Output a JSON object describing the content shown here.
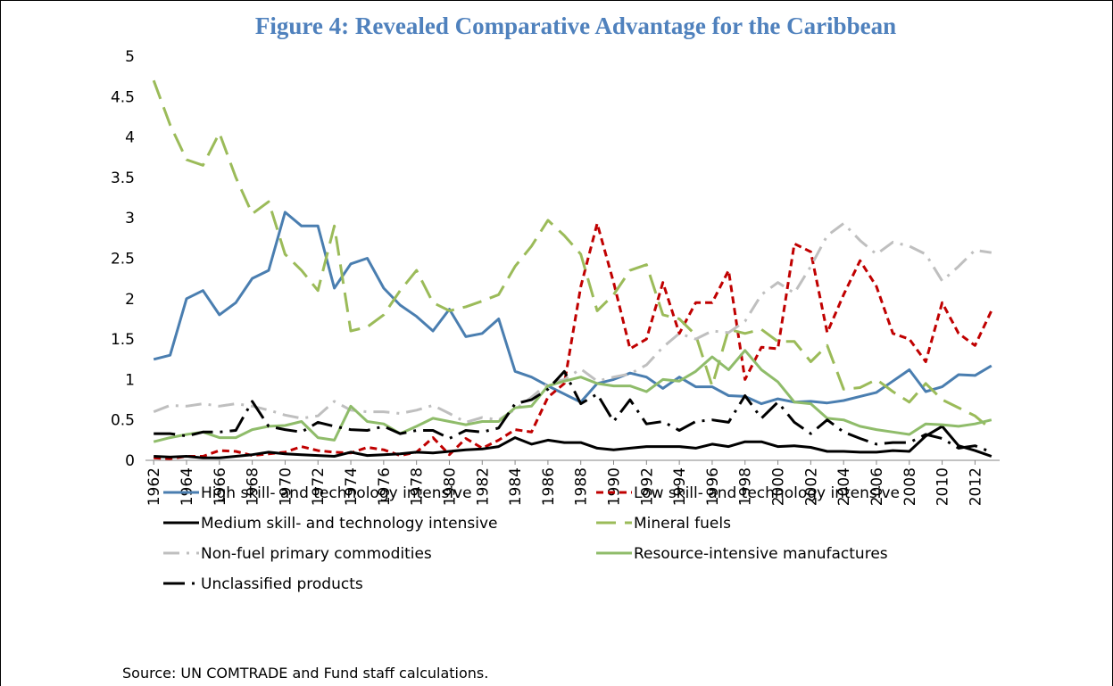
{
  "chart_data": {
    "type": "line",
    "title": "Figure 4: Revealed Comparative Advantage for the Caribbean",
    "source": "Source: UN COMTRADE and Fund staff calculations.",
    "x": [
      1962,
      1963,
      1964,
      1965,
      1966,
      1967,
      1968,
      1969,
      1970,
      1971,
      1972,
      1973,
      1974,
      1975,
      1976,
      1977,
      1978,
      1979,
      1980,
      1981,
      1982,
      1983,
      1984,
      1985,
      1986,
      1987,
      1988,
      1989,
      1990,
      1991,
      1992,
      1993,
      1994,
      1995,
      1996,
      1997,
      1998,
      1999,
      2000,
      2001,
      2002,
      2003,
      2004,
      2005,
      2006,
      2007,
      2008,
      2009,
      2010,
      2011,
      2012,
      2013
    ],
    "xlim": [
      1961.5,
      2013.5
    ],
    "xticks": [
      1962,
      1964,
      1966,
      1968,
      1970,
      1972,
      1974,
      1976,
      1978,
      1980,
      1982,
      1984,
      1986,
      1988,
      1990,
      1992,
      1994,
      1996,
      1998,
      2000,
      2002,
      2004,
      2006,
      2008,
      2010,
      2012
    ],
    "ylim": [
      0,
      5
    ],
    "yticks": [
      0,
      0.5,
      1,
      1.5,
      2,
      2.5,
      3,
      3.5,
      4,
      4.5,
      5
    ],
    "grid": false,
    "series": [
      {
        "name": "High skill- and technology intensive",
        "color": "#4a7eb0",
        "line_style": "solid",
        "values": [
          1.25,
          1.3,
          2.0,
          2.1,
          1.8,
          1.95,
          2.25,
          2.35,
          3.07,
          2.9,
          2.9,
          2.13,
          2.43,
          2.5,
          2.13,
          1.92,
          1.78,
          1.6,
          1.87,
          1.53,
          1.57,
          1.75,
          1.1,
          1.03,
          0.92,
          0.82,
          0.72,
          0.95,
          1.0,
          1.08,
          1.03,
          0.89,
          1.03,
          0.91,
          0.91,
          0.8,
          0.79,
          0.7,
          0.76,
          0.72,
          0.73,
          0.71,
          0.74,
          0.79,
          0.84,
          0.98,
          1.12,
          0.85,
          0.91,
          1.06,
          1.05,
          1.17
        ]
      },
      {
        "name": "Low skill- and technology intensive",
        "color": "#c00000",
        "line_style": "dash",
        "values": [
          0.03,
          0.02,
          0.05,
          0.05,
          0.12,
          0.11,
          0.06,
          0.08,
          0.1,
          0.17,
          0.12,
          0.1,
          0.09,
          0.16,
          0.13,
          0.06,
          0.1,
          0.28,
          0.07,
          0.27,
          0.15,
          0.25,
          0.38,
          0.35,
          0.78,
          0.95,
          2.15,
          2.93,
          2.2,
          1.38,
          1.5,
          2.2,
          1.57,
          1.95,
          1.95,
          2.35,
          1.0,
          1.4,
          1.38,
          2.68,
          2.58,
          1.58,
          2.05,
          2.47,
          2.15,
          1.57,
          1.5,
          1.22,
          1.95,
          1.57,
          1.42,
          1.85
        ]
      },
      {
        "name": "Medium skill- and technology intensive",
        "color": "#000000",
        "line_style": "solid",
        "values": [
          0.05,
          0.04,
          0.05,
          0.03,
          0.03,
          0.05,
          0.07,
          0.1,
          0.08,
          0.07,
          0.06,
          0.05,
          0.1,
          0.06,
          0.07,
          0.08,
          0.1,
          0.09,
          0.11,
          0.13,
          0.14,
          0.17,
          0.28,
          0.2,
          0.25,
          0.22,
          0.22,
          0.15,
          0.13,
          0.15,
          0.17,
          0.17,
          0.17,
          0.15,
          0.2,
          0.17,
          0.23,
          0.23,
          0.17,
          0.18,
          0.16,
          0.11,
          0.11,
          0.1,
          0.1,
          0.12,
          0.11,
          0.3,
          0.42,
          0.18,
          0.12,
          0.05
        ]
      },
      {
        "name": "Mineral fuels",
        "color": "#9bbb59",
        "line_style": "longdash",
        "values": [
          4.7,
          4.15,
          3.72,
          3.65,
          4.05,
          3.5,
          3.05,
          3.2,
          2.55,
          2.35,
          2.1,
          2.9,
          1.6,
          1.65,
          1.8,
          2.1,
          2.35,
          1.95,
          1.85,
          1.9,
          1.97,
          2.05,
          2.4,
          2.65,
          2.97,
          2.78,
          2.55,
          1.85,
          2.05,
          2.35,
          2.42,
          1.8,
          1.75,
          1.55,
          0.92,
          1.62,
          1.57,
          1.62,
          1.47,
          1.47,
          1.22,
          1.42,
          0.88,
          0.9,
          1.0,
          0.85,
          0.72,
          0.95,
          0.75,
          0.65,
          0.55,
          0.38
        ]
      },
      {
        "name": "Non-fuel primary commodities",
        "color": "#bfbfbf",
        "line_style": "dashdot",
        "values": [
          0.6,
          0.68,
          0.67,
          0.7,
          0.67,
          0.7,
          0.67,
          0.62,
          0.56,
          0.52,
          0.55,
          0.73,
          0.62,
          0.6,
          0.6,
          0.58,
          0.62,
          0.68,
          0.58,
          0.47,
          0.53,
          0.5,
          0.63,
          0.78,
          0.95,
          1.0,
          1.13,
          0.98,
          1.03,
          1.07,
          1.18,
          1.4,
          1.57,
          1.5,
          1.6,
          1.58,
          1.72,
          2.05,
          2.2,
          2.07,
          2.4,
          2.78,
          2.93,
          2.72,
          2.55,
          2.7,
          2.65,
          2.55,
          2.22,
          2.4,
          2.6,
          2.57
        ]
      },
      {
        "name": "Resource-intensive manufactures",
        "color": "#8fbc6a",
        "line_style": "solid",
        "values": [
          0.23,
          0.28,
          0.32,
          0.35,
          0.28,
          0.28,
          0.38,
          0.42,
          0.43,
          0.48,
          0.28,
          0.25,
          0.67,
          0.48,
          0.45,
          0.33,
          0.42,
          0.52,
          0.48,
          0.44,
          0.48,
          0.48,
          0.65,
          0.67,
          0.92,
          0.98,
          1.03,
          0.95,
          0.92,
          0.92,
          0.85,
          1.0,
          0.98,
          1.1,
          1.28,
          1.12,
          1.36,
          1.12,
          0.97,
          0.72,
          0.7,
          0.52,
          0.5,
          0.42,
          0.38,
          0.35,
          0.32,
          0.45,
          0.44,
          0.42,
          0.45,
          0.5
        ]
      },
      {
        "name": "Unclassified products",
        "color": "#000000",
        "line_style": "longdashdot",
        "values": [
          0.33,
          0.33,
          0.3,
          0.35,
          0.35,
          0.37,
          0.73,
          0.42,
          0.38,
          0.35,
          0.47,
          0.42,
          0.38,
          0.37,
          0.42,
          0.33,
          0.37,
          0.37,
          0.27,
          0.37,
          0.35,
          0.4,
          0.7,
          0.75,
          0.88,
          1.1,
          0.7,
          0.82,
          0.48,
          0.75,
          0.45,
          0.48,
          0.37,
          0.48,
          0.5,
          0.47,
          0.8,
          0.52,
          0.72,
          0.47,
          0.33,
          0.5,
          0.35,
          0.27,
          0.2,
          0.22,
          0.22,
          0.32,
          0.27,
          0.15,
          0.18,
          0.1
        ]
      }
    ]
  }
}
